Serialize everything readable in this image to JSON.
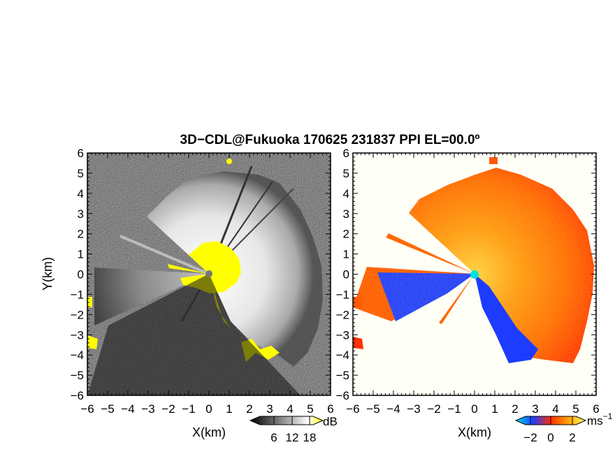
{
  "figure": {
    "title": "3D−CDL@Fukuoka 170625 231837 PPI EL=00.0º"
  },
  "chart_data": [
    {
      "type": "heatmap",
      "panel": "left",
      "quantity": "signal intensity",
      "xlabel": "X(km)",
      "ylabel": "Y(km)",
      "xlim": [
        -6,
        6
      ],
      "ylim": [
        -6,
        6
      ],
      "xticks": [
        "−6",
        "−5",
        "−4",
        "−3",
        "−2",
        "−1",
        "0",
        "1",
        "2",
        "3",
        "4",
        "5",
        "6"
      ],
      "yticks": [
        "6",
        "5",
        "4",
        "3",
        "2",
        "1",
        "0",
        "−1",
        "−2",
        "−3",
        "−4",
        "−5",
        "−6"
      ],
      "colorbar": {
        "unit": "dB",
        "ticks": [
          "6",
          "12",
          "18"
        ],
        "colors": [
          "#000000",
          "#ffffff",
          "#ffff00"
        ]
      },
      "grid": false
    },
    {
      "type": "heatmap",
      "panel": "right",
      "quantity": "Doppler velocity",
      "xlabel": "X(km)",
      "ylabel": "",
      "xlim": [
        -6,
        6
      ],
      "ylim": [
        -6,
        6
      ],
      "xticks": [
        "−6",
        "−5",
        "−4",
        "−3",
        "−2",
        "−1",
        "0",
        "1",
        "2",
        "3",
        "4",
        "5",
        "6"
      ],
      "yticks": [
        "6",
        "5",
        "4",
        "3",
        "2",
        "1",
        "0",
        "−1",
        "−2",
        "−3",
        "−4",
        "−5",
        "−6"
      ],
      "colorbar": {
        "unit": "ms",
        "unit_exponent": "−1",
        "ticks": [
          "−2",
          "0",
          "2"
        ],
        "colors": [
          "#00e0e0",
          "#1e3cff",
          "#ff3000",
          "#ffa000",
          "#ffff60"
        ]
      },
      "grid": false
    }
  ]
}
